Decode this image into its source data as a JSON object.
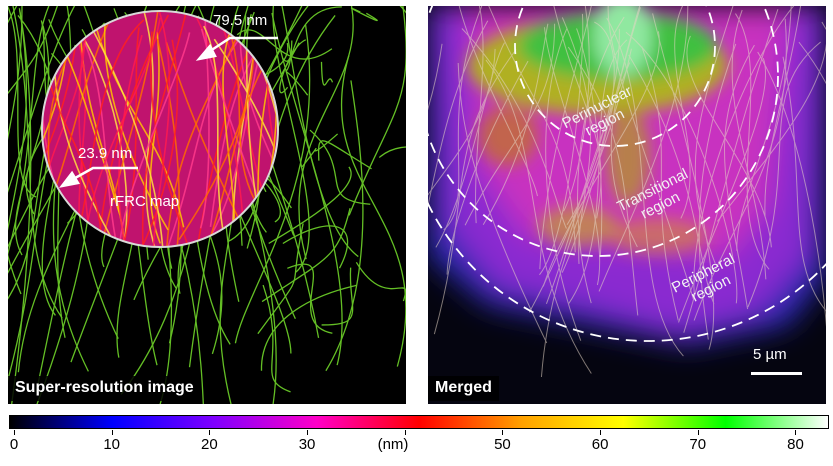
{
  "left_panel": {
    "caption": "Super-resolution image",
    "inset_label": "rFRC map",
    "top_value": "79.5 nm",
    "bottom_value": "23.9 nm"
  },
  "right_panel": {
    "caption": "Merged",
    "region_perinuclear": "Perinuclear\nregion",
    "region_transitional": "Transitional\nregion",
    "region_peripheral": "Peripheral\nregion",
    "scale_bar": "5 µm"
  },
  "colorbar": {
    "unit": "(nm)",
    "ticks": [
      "0",
      "10",
      "20",
      "30",
      "40",
      "50",
      "60",
      "70",
      "80"
    ],
    "range": [
      0,
      82
    ],
    "colors": [
      "#000000",
      "#0000ff",
      "#8000ff",
      "#ff00c8",
      "#ff0000",
      "#ffa000",
      "#ffff00",
      "#00ff00",
      "#ffffff"
    ]
  }
}
